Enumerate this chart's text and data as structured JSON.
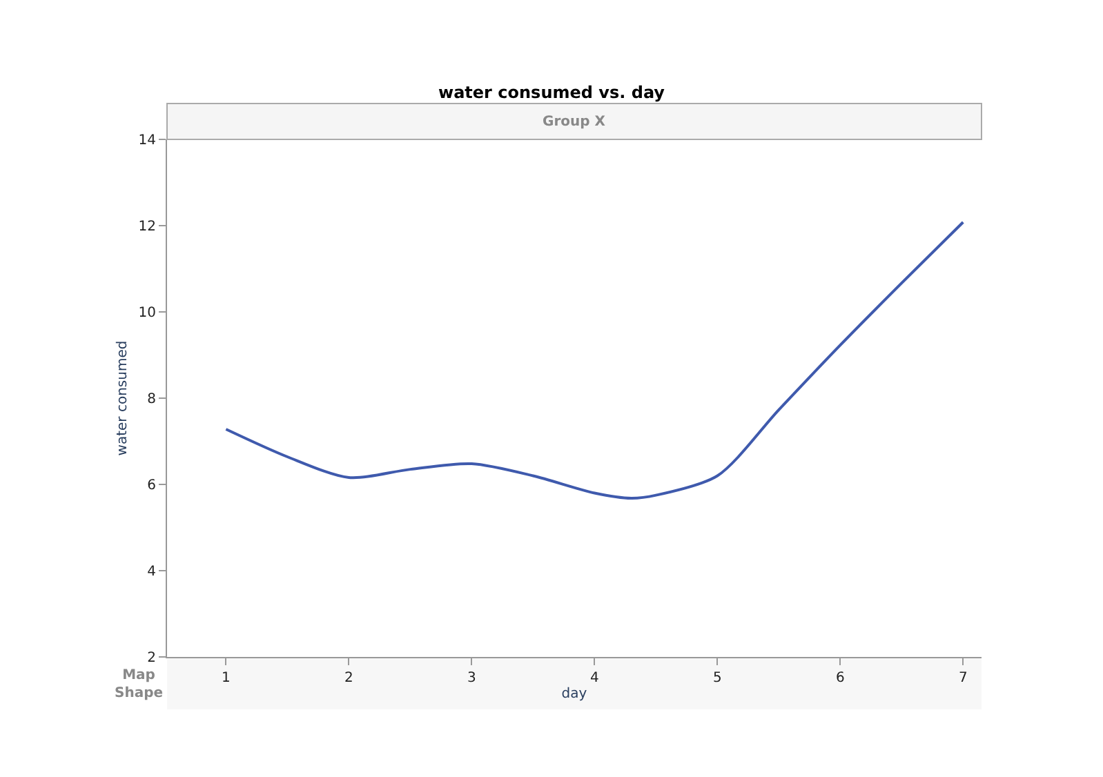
{
  "chart_data": {
    "type": "line",
    "title": "water consumed vs. day",
    "xlabel": "day",
    "ylabel": "water consumed",
    "x": [
      1,
      1.5,
      2,
      2.5,
      3,
      3.5,
      4,
      4.3,
      4.5,
      5,
      5.5,
      6,
      6.5,
      7
    ],
    "series": [
      {
        "color": "#3f5aad",
        "values": [
          7.28,
          6.64,
          6.16,
          6.35,
          6.48,
          6.2,
          5.8,
          5.68,
          5.75,
          6.2,
          7.73,
          9.23,
          10.67,
          12.08
        ]
      }
    ],
    "xlim": [
      0.52,
      7.15
    ],
    "xticks": [
      1,
      2,
      3,
      4,
      5,
      6,
      7
    ],
    "ylim": [
      2,
      14
    ],
    "yticks": [
      2,
      4,
      6,
      8,
      10,
      12,
      14
    ],
    "annotations": [
      "Group X",
      "Map Shape"
    ],
    "grid": false,
    "marker": "none",
    "line_style": "solid"
  }
}
